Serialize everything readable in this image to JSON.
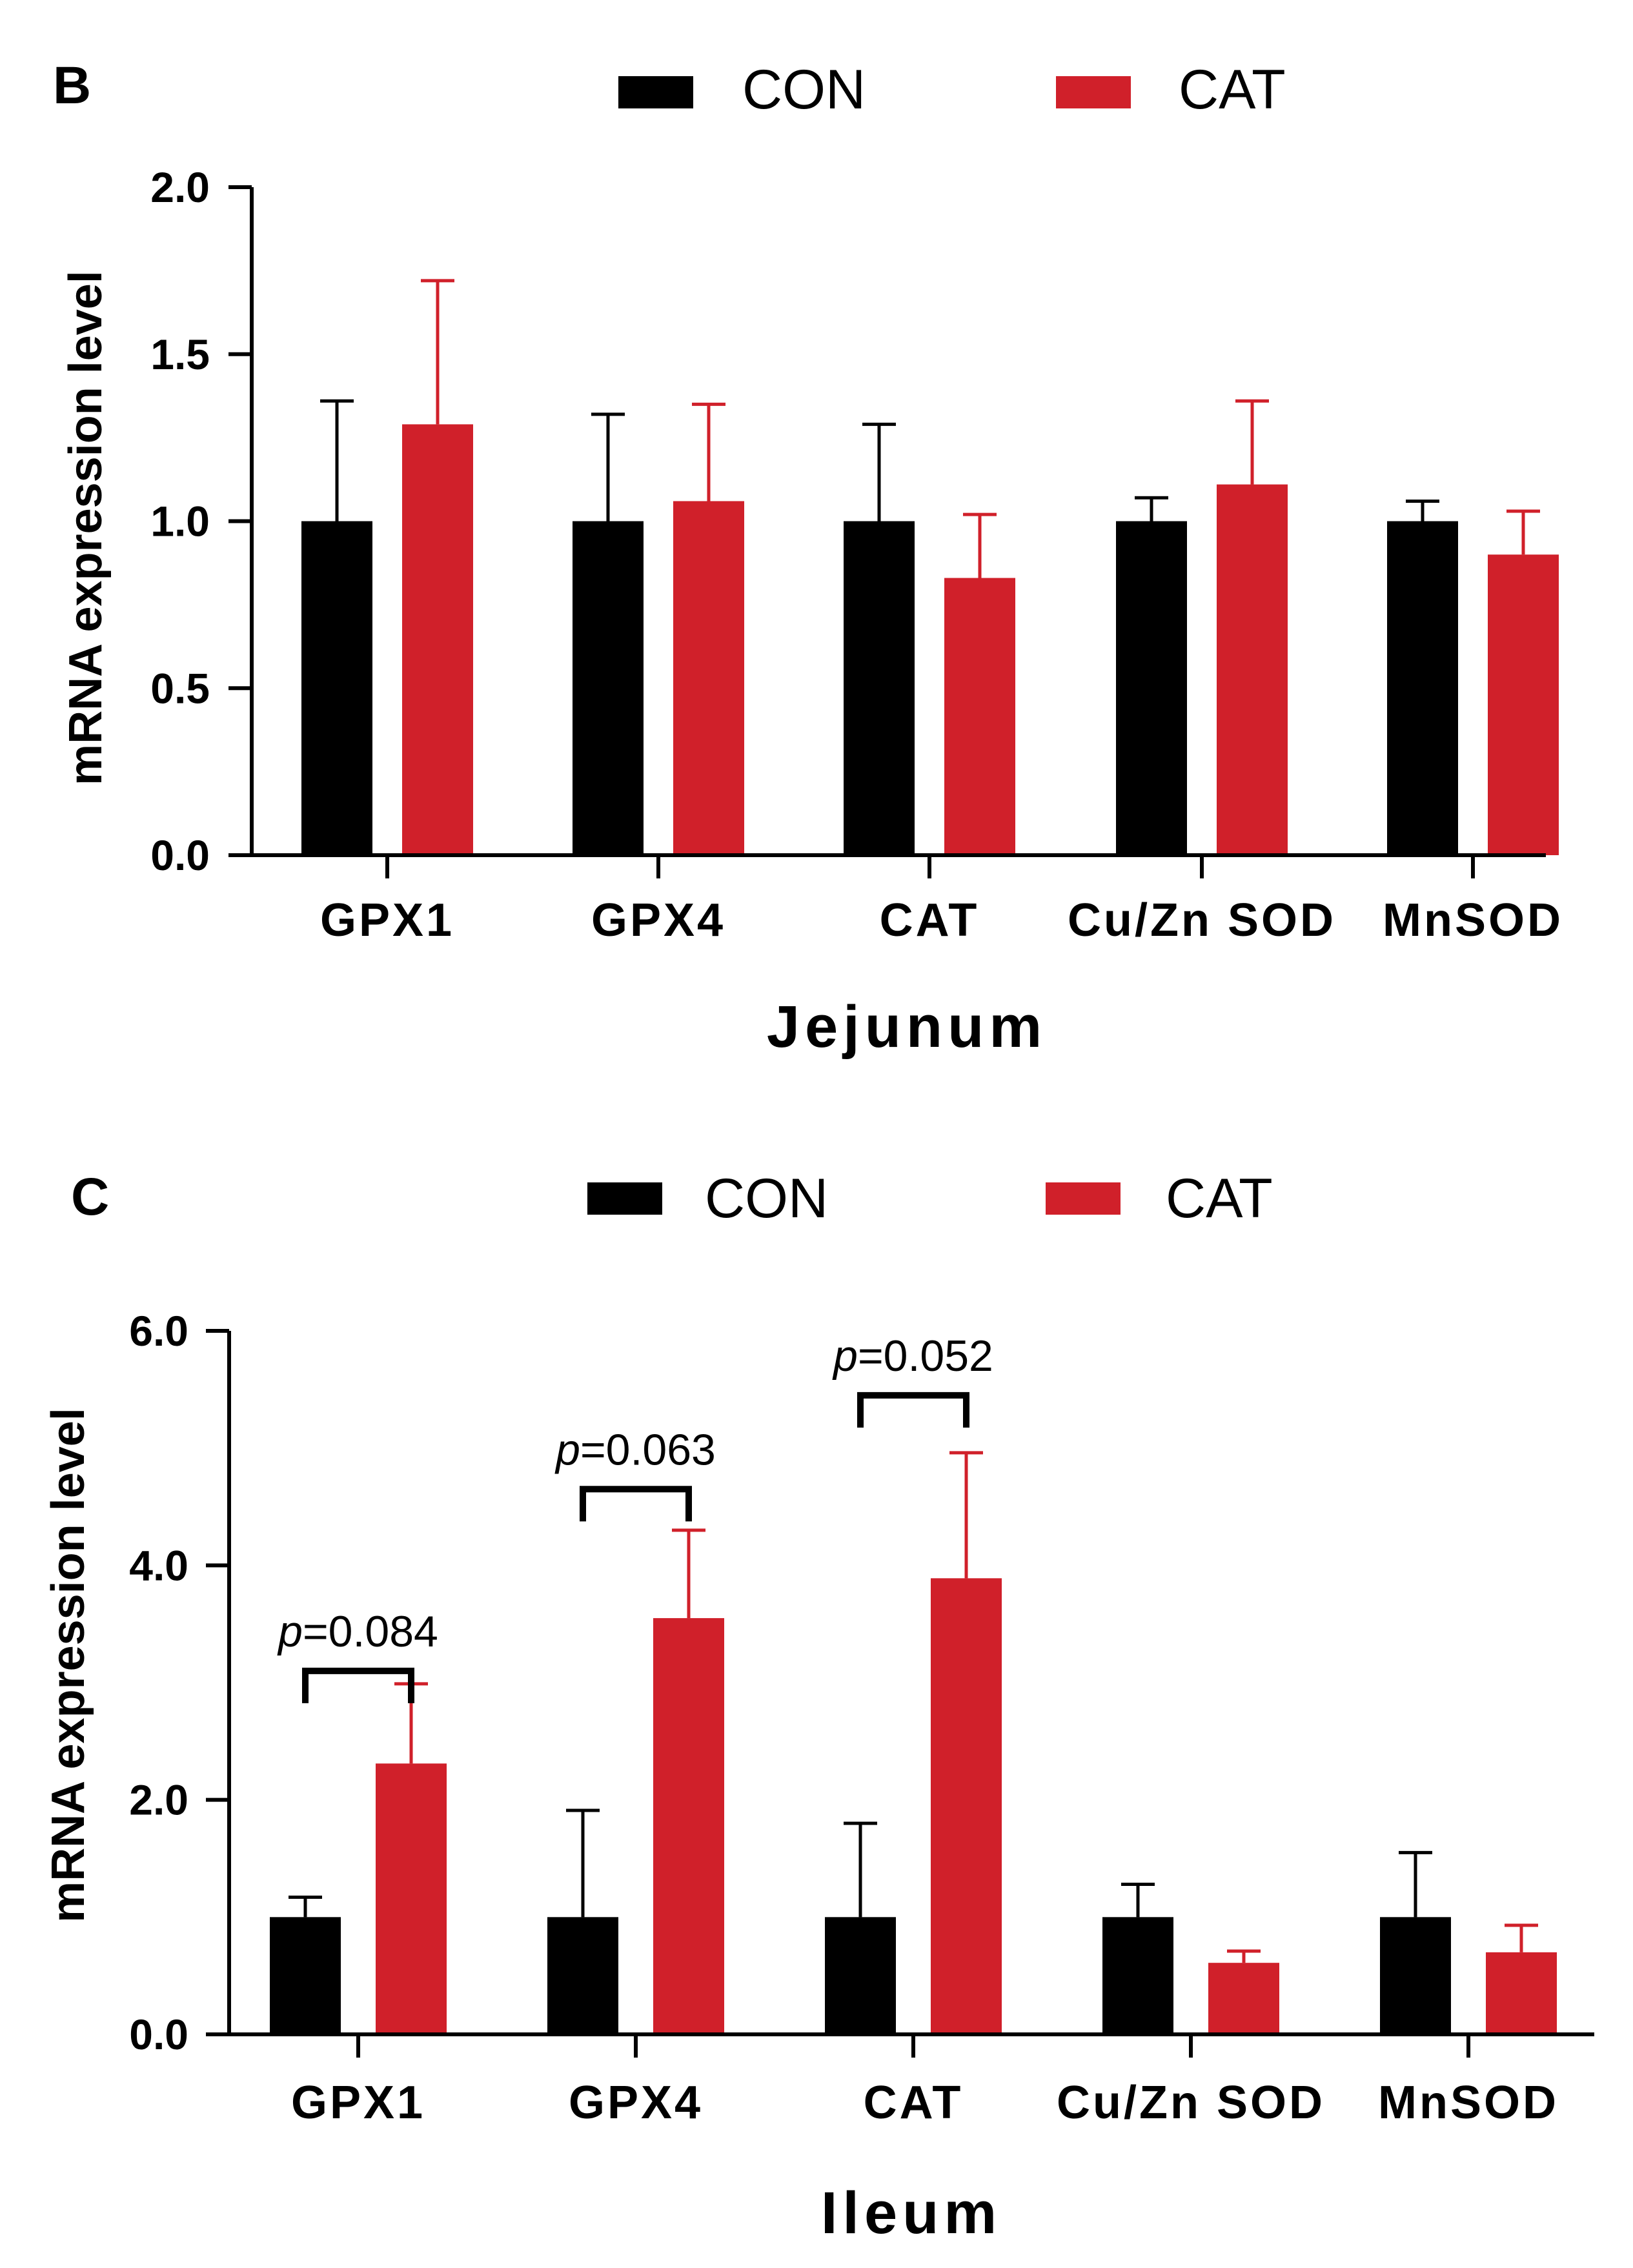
{
  "colors": {
    "con": "#000000",
    "cat": "#d0202a",
    "axis": "#000000"
  },
  "chart_data": [
    {
      "type": "bar",
      "panel": "B",
      "title": "",
      "xlabel": "Jejunum",
      "ylabel": "mRNA expression level",
      "ylim": [
        0,
        2.0
      ],
      "yticks": [
        "0.0",
        "0.5",
        "1.0",
        "1.5",
        "2.0"
      ],
      "ytick_values": [
        0,
        0.5,
        1.0,
        1.5,
        2.0
      ],
      "categories": [
        "GPX1",
        "GPX4",
        "CAT",
        "Cu/Zn SOD",
        "MnSOD"
      ],
      "legend": {
        "position": "top-center",
        "entries": [
          "CON",
          "CAT"
        ]
      },
      "series": [
        {
          "name": "CON",
          "values": [
            1.0,
            1.0,
            1.0,
            1.0,
            1.0
          ],
          "errors": [
            0.36,
            0.32,
            0.29,
            0.07,
            0.06
          ]
        },
        {
          "name": "CAT",
          "values": [
            1.29,
            1.06,
            0.83,
            1.11,
            0.9
          ],
          "errors": [
            0.43,
            0.29,
            0.19,
            0.25,
            0.13
          ]
        }
      ],
      "annotations": []
    },
    {
      "type": "bar",
      "panel": "C",
      "title": "",
      "xlabel": "Ileum",
      "ylabel": "mRNA expression level",
      "ylim": [
        0,
        6.0
      ],
      "yticks": [
        "0.0",
        "2.0",
        "4.0",
        "6.0"
      ],
      "ytick_values": [
        0,
        2.0,
        4.0,
        6.0
      ],
      "categories": [
        "GPX1",
        "GPX4",
        "CAT",
        "Cu/Zn SOD",
        "MnSOD"
      ],
      "legend": {
        "position": "top-center",
        "entries": [
          "CON",
          "CAT"
        ]
      },
      "series": [
        {
          "name": "CON",
          "values": [
            1.0,
            1.0,
            1.0,
            1.0,
            1.0
          ],
          "errors": [
            0.17,
            0.91,
            0.8,
            0.28,
            0.55
          ]
        },
        {
          "name": "CAT",
          "values": [
            2.31,
            3.55,
            3.89,
            0.61,
            0.7
          ],
          "errors": [
            0.68,
            0.75,
            1.07,
            0.1,
            0.23
          ]
        }
      ],
      "annotations": [
        {
          "category": "GPX1",
          "prefix": "p",
          "text": "=0.084",
          "bracket_level": 3.1
        },
        {
          "category": "GPX4",
          "prefix": "p",
          "text": "=0.063",
          "bracket_level": 4.65
        },
        {
          "category": "CAT",
          "prefix": "p",
          "text": "=0.052",
          "bracket_level": 5.45
        }
      ]
    }
  ]
}
